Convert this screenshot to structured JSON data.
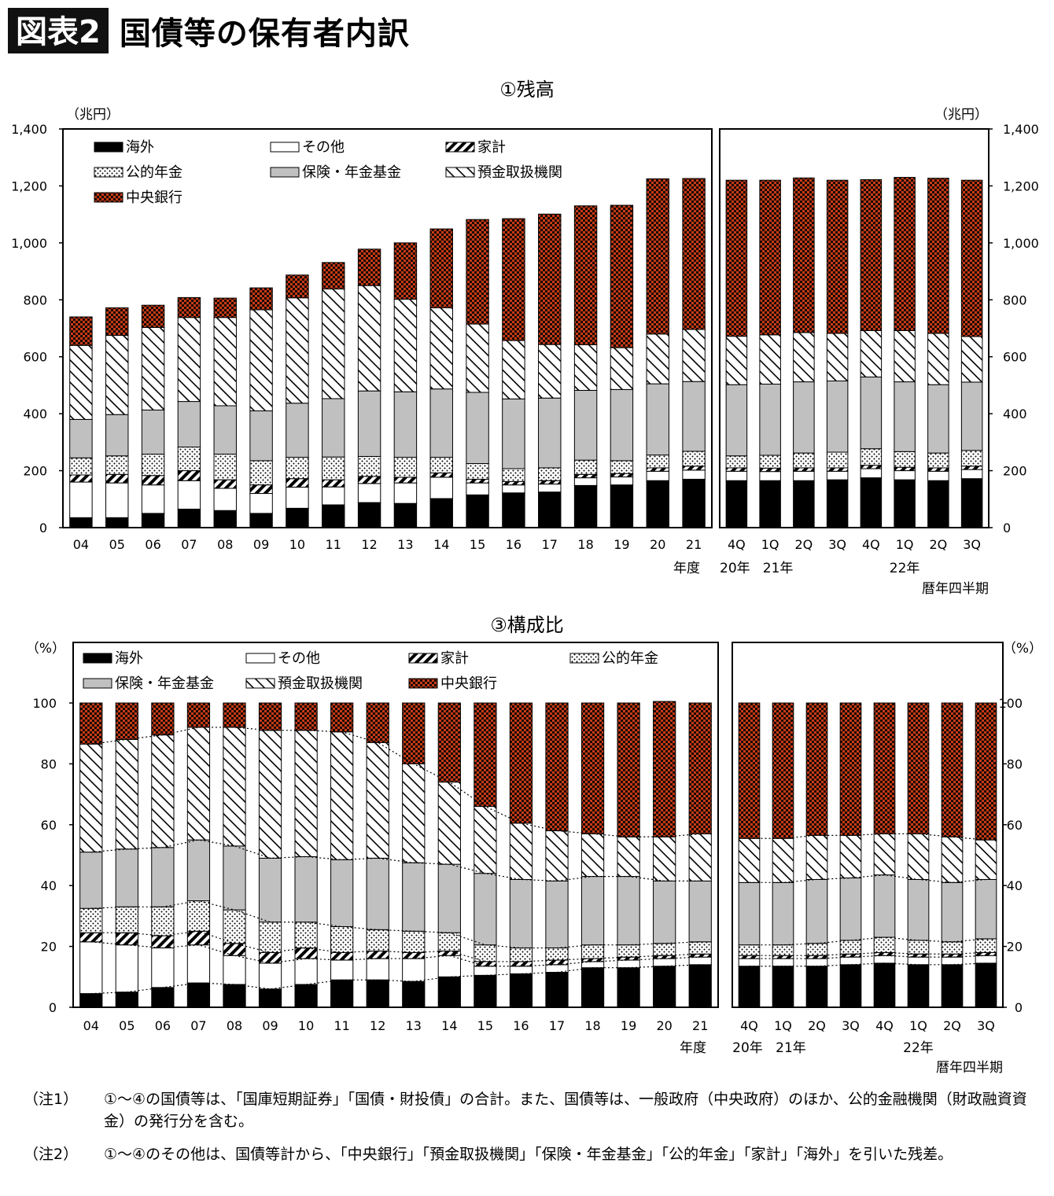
{
  "header": {
    "badge": "図表2",
    "title": "国債等の保有者内訳"
  },
  "colors": {
    "overseas": "#000000",
    "other": "#ffffff",
    "household": "#ffffff",
    "public_pension": "#ffffff",
    "insurance": "#c0c0c0",
    "depository": "#ffffff",
    "central_bank": "#c63b16"
  },
  "chart_data": [
    {
      "type": "bar",
      "stacked": true,
      "title": "①残高",
      "ylabel_left": "（兆円）",
      "ylabel_right": "（兆円）",
      "ylim": [
        0,
        1400
      ],
      "yticks": [
        "0",
        "200",
        "400",
        "600",
        "800",
        "1,000",
        "1,200",
        "1,400"
      ],
      "legend": [
        "海外",
        "その他",
        "家計",
        "公的年金",
        "保険・年金基金",
        "預金取扱機関",
        "中央銀行"
      ],
      "panels": [
        {
          "categories": [
            "04",
            "05",
            "06",
            "07",
            "08",
            "09",
            "10",
            "11",
            "12",
            "13",
            "14",
            "15",
            "16",
            "17",
            "18",
            "19",
            "20",
            "21"
          ],
          "unit_label": "年度",
          "sub_labels": [],
          "series": [
            {
              "name": "海外",
              "values": [
                35,
                35,
                50,
                65,
                60,
                50,
                68,
                80,
                88,
                85,
                102,
                115,
                122,
                125,
                148,
                150,
                165,
                170
              ]
            },
            {
              "name": "その他",
              "values": [
                125,
                122,
                100,
                100,
                78,
                70,
                74,
                63,
                67,
                72,
                75,
                42,
                28,
                28,
                27,
                28,
                33,
                32
              ]
            },
            {
              "name": "家計",
              "values": [
                25,
                30,
                33,
                35,
                30,
                30,
                30,
                25,
                25,
                20,
                15,
                13,
                12,
                12,
                12,
                12,
                12,
                14
              ]
            },
            {
              "name": "公的年金",
              "values": [
                60,
                65,
                75,
                83,
                90,
                85,
                75,
                80,
                70,
                70,
                55,
                55,
                45,
                45,
                50,
                45,
                45,
                52
              ]
            },
            {
              "name": "保険・年金基金",
              "values": [
                135,
                145,
                155,
                160,
                170,
                175,
                190,
                205,
                230,
                230,
                240,
                250,
                245,
                245,
                245,
                250,
                250,
                245
              ]
            },
            {
              "name": "預金取扱機関",
              "values": [
                260,
                278,
                290,
                295,
                310,
                355,
                370,
                385,
                370,
                325,
                285,
                240,
                205,
                188,
                160,
                147,
                175,
                183
              ]
            },
            {
              "name": "中央銀行",
              "values": [
                100,
                97,
                78,
                70,
                68,
                77,
                80,
                93,
                128,
                198,
                277,
                367,
                428,
                458,
                488,
                500,
                545,
                530
              ]
            }
          ]
        },
        {
          "categories": [
            "4Q",
            "1Q",
            "2Q",
            "3Q",
            "4Q",
            "1Q",
            "2Q",
            "3Q"
          ],
          "unit_label": "暦年四半期",
          "sub_labels": [
            {
              "text": "20年",
              "at": 0
            },
            {
              "text": "21年",
              "at": 1
            },
            {
              "text": "22年",
              "at": 5
            }
          ],
          "series": [
            {
              "name": "海外",
              "values": [
                165,
                165,
                165,
                168,
                175,
                168,
                165,
                172
              ]
            },
            {
              "name": "その他",
              "values": [
                33,
                32,
                33,
                30,
                32,
                32,
                33,
                32
              ]
            },
            {
              "name": "家計",
              "values": [
                12,
                12,
                12,
                12,
                12,
                12,
                12,
                12
              ]
            },
            {
              "name": "公的年金",
              "values": [
                42,
                45,
                52,
                55,
                58,
                55,
                52,
                55
              ]
            },
            {
              "name": "保険・年金基金",
              "values": [
                250,
                250,
                250,
                250,
                252,
                245,
                240,
                240
              ]
            },
            {
              "name": "預金取扱機関",
              "values": [
                170,
                173,
                173,
                167,
                163,
                180,
                180,
                160
              ]
            },
            {
              "name": "中央銀行",
              "values": [
                548,
                543,
                543,
                538,
                530,
                538,
                545,
                549
              ]
            }
          ]
        }
      ]
    },
    {
      "type": "bar",
      "stacked": true,
      "title": "③構成比",
      "ylabel_left": "（%）",
      "ylabel_right": "（%）",
      "ylim": [
        0,
        100
      ],
      "yticks": [
        "0",
        "20",
        "40",
        "60",
        "80",
        "100"
      ],
      "legend": [
        "海外",
        "その他",
        "家計",
        "公的年金",
        "保険・年金基金",
        "預金取扱機関",
        "中央銀行"
      ],
      "panels": [
        {
          "categories": [
            "04",
            "05",
            "06",
            "07",
            "08",
            "09",
            "10",
            "11",
            "12",
            "13",
            "14",
            "15",
            "16",
            "17",
            "18",
            "19",
            "20",
            "21"
          ],
          "unit_label": "年度",
          "sub_labels": [],
          "series": [
            {
              "name": "海外",
              "values": [
                4.5,
                5,
                6.5,
                8,
                7.5,
                6,
                7.5,
                9,
                9,
                8.5,
                10,
                10.5,
                11,
                11.5,
                13,
                13,
                13.5,
                14
              ]
            },
            {
              "name": "その他",
              "values": [
                17,
                15.5,
                13,
                12.5,
                9.5,
                8.5,
                8.5,
                6.5,
                7,
                7.5,
                7,
                3,
                2.5,
                2.5,
                2,
                2.5,
                2.5,
                2.5
              ]
            },
            {
              "name": "家計",
              "values": [
                3,
                4,
                4,
                4.5,
                4,
                3.5,
                3.5,
                2.5,
                2.5,
                2,
                1.5,
                1.5,
                1.5,
                1.5,
                1,
                1,
                1,
                1
              ]
            },
            {
              "name": "公的年金",
              "values": [
                8,
                8.5,
                9.5,
                10,
                11,
                10,
                8.5,
                8.5,
                7,
                7,
                6,
                5.5,
                4.5,
                4,
                4.5,
                4,
                4,
                4
              ]
            },
            {
              "name": "保険・年金基金",
              "values": [
                18.5,
                19,
                19.5,
                20,
                21,
                21,
                21.5,
                22,
                23.5,
                22.5,
                22.5,
                23.5,
                22.5,
                22,
                22.5,
                22.5,
                20.5,
                20
              ]
            },
            {
              "name": "預金取扱機関",
              "values": [
                35.5,
                36,
                37,
                37,
                39,
                42,
                41.5,
                42,
                38,
                32.5,
                27,
                22,
                18.5,
                16.5,
                14,
                13,
                14.5,
                15.5
              ]
            },
            {
              "name": "中央銀行",
              "values": [
                13.5,
                12,
                10.5,
                8,
                8,
                9,
                9,
                9.5,
                13,
                20,
                26,
                34,
                39.5,
                42,
                43,
                44,
                44.5,
                43
              ]
            }
          ]
        },
        {
          "categories": [
            "4Q",
            "1Q",
            "2Q",
            "3Q",
            "4Q",
            "1Q",
            "2Q",
            "3Q"
          ],
          "unit_label": "暦年四半期",
          "sub_labels": [
            {
              "text": "20年",
              "at": 0
            },
            {
              "text": "21年",
              "at": 1
            },
            {
              "text": "22年",
              "at": 5
            }
          ],
          "series": [
            {
              "name": "海外",
              "values": [
                13.5,
                13.5,
                13.5,
                14,
                14.5,
                14,
                14,
                14.5
              ]
            },
            {
              "name": "その他",
              "values": [
                2.5,
                2.5,
                2.5,
                2.5,
                2.5,
                2.5,
                2.5,
                2.5
              ]
            },
            {
              "name": "家計",
              "values": [
                1,
                1,
                1,
                1,
                1,
                1,
                1,
                1
              ]
            },
            {
              "name": "公的年金",
              "values": [
                3.5,
                3.5,
                4,
                4.5,
                5,
                4.5,
                4,
                4.5
              ]
            },
            {
              "name": "保険・年金基金",
              "values": [
                20.5,
                20.5,
                21,
                20.5,
                20.5,
                20,
                19.5,
                19.5
              ]
            },
            {
              "name": "預金取扱機関",
              "values": [
                14.5,
                14.5,
                14.5,
                14,
                13.5,
                15,
                15,
                13
              ]
            },
            {
              "name": "中央銀行",
              "values": [
                44.5,
                44.5,
                43.5,
                43.5,
                43,
                43,
                44,
                45
              ]
            }
          ]
        }
      ]
    }
  ],
  "notes": [
    {
      "label": "（注1）",
      "text": "①～④の国債等は、「国庫短期証券」「国債・財投債」の合計。また、国債等は、一般政府（中央政府）のほか、公的金融機関（財政融資資金）の発行分を含む。"
    },
    {
      "label": "（注2）",
      "text": "①～④のその他は、国債等計から、「中央銀行」「預金取扱機関」「保険・年金基金」「公的年金」「家計」「海外」を引いた残差。"
    }
  ]
}
